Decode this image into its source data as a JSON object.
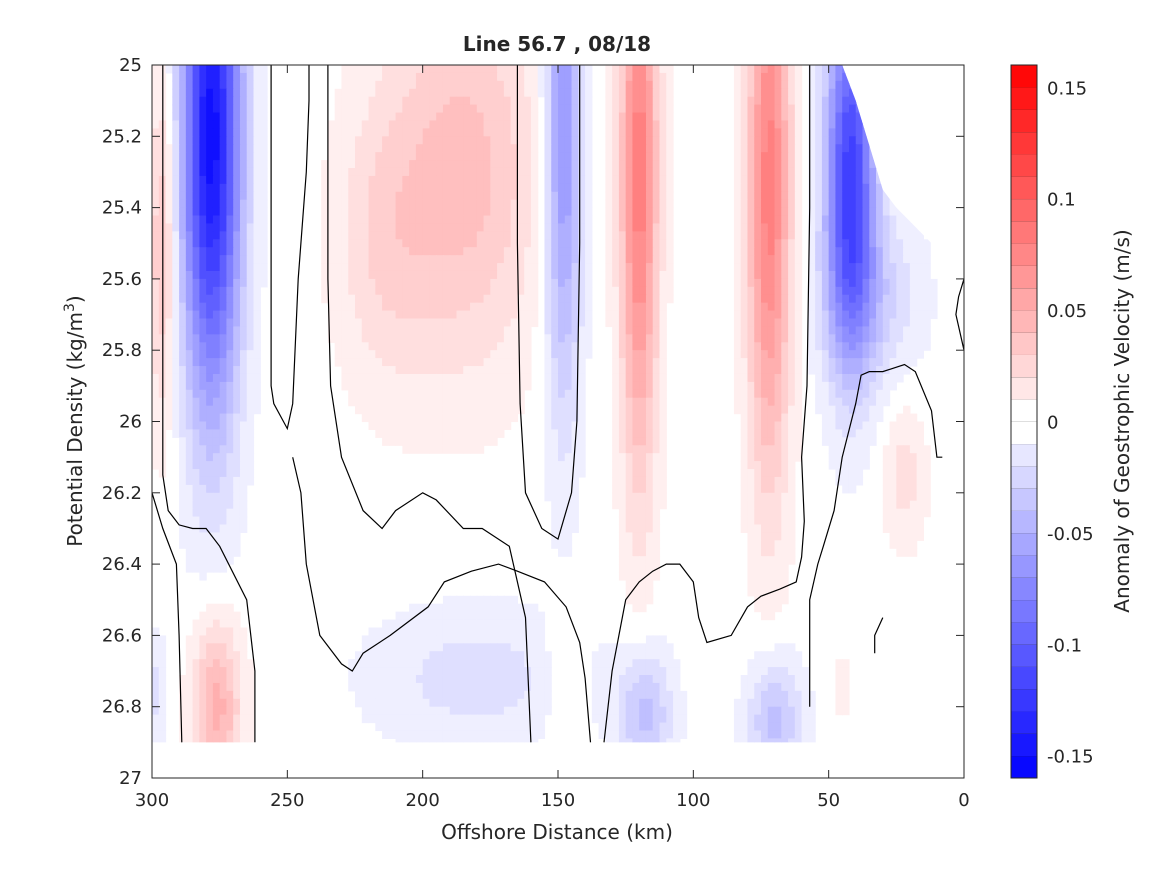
{
  "chart_data": {
    "type": "heatmap",
    "subtype": "filled-contour",
    "title": "Line 56.7 , 08/18",
    "xlabel": "Offshore Distance (km)",
    "ylabel_main": "Potential Density (kg/m",
    "ylabel_sup": "3",
    "ylabel_end": ")",
    "xlim": [
      300,
      0
    ],
    "ylim": [
      27,
      25
    ],
    "xticks": [
      300,
      250,
      200,
      150,
      100,
      50,
      0
    ],
    "xtick_labels": [
      "300",
      "250",
      "200",
      "150",
      "100",
      "50",
      "0"
    ],
    "yticks": [
      25,
      25.2,
      25.4,
      25.6,
      25.8,
      26,
      26.2,
      26.4,
      26.6,
      26.8,
      27
    ],
    "ytick_labels": [
      "25",
      "25.2",
      "25.4",
      "25.6",
      "25.8",
      "26",
      "26.2",
      "26.4",
      "26.6",
      "26.8",
      "27"
    ],
    "colorbar": {
      "label": "Anomaly of Geostrophic Velocity (m/s)",
      "range": [
        -0.16,
        0.16
      ],
      "levels_step": 0.01,
      "ticks": [
        0.15,
        0.1,
        0.05,
        0,
        -0.05,
        -0.1,
        -0.15
      ],
      "tick_labels": [
        "0.15",
        "0.1",
        "0.05",
        "0",
        "-0.05",
        "-0.1",
        "-0.15"
      ],
      "positive_color": "#ff0000",
      "negative_color": "#0000ff"
    },
    "data_coverage": {
      "y_max": 26.9,
      "top_boundary": [
        [
          300,
          25
        ],
        [
          45,
          25
        ],
        [
          40,
          25.1
        ],
        [
          30,
          25.35
        ],
        [
          25,
          25.4
        ],
        [
          12,
          25.5
        ],
        [
          5,
          25.5
        ],
        [
          3,
          25.6
        ],
        [
          0,
          25.6
        ]
      ]
    },
    "features": [
      {
        "x": 296,
        "y": 25.5,
        "value": 0.04,
        "wx": 5,
        "wy": 0.5
      },
      {
        "x": 278,
        "y": 25.2,
        "value": -0.15,
        "wx": 11,
        "wy": 0.75
      },
      {
        "x": 276,
        "y": 26.8,
        "value": 0.05,
        "wx": 9,
        "wy": 0.25
      },
      {
        "x": 298,
        "y": 26.75,
        "value": -0.02,
        "wx": 3,
        "wy": 0.15
      },
      {
        "x": 185,
        "y": 25.3,
        "value": 0.04,
        "wx": 28,
        "wy": 0.55
      },
      {
        "x": 215,
        "y": 25.5,
        "value": 0.02,
        "wx": 18,
        "wy": 0.4
      },
      {
        "x": 148,
        "y": 25.2,
        "value": -0.07,
        "wx": 7,
        "wy": 0.75
      },
      {
        "x": 120,
        "y": 25.3,
        "value": 0.08,
        "wx": 7,
        "wy": 0.85
      },
      {
        "x": 72,
        "y": 25.35,
        "value": 0.08,
        "wx": 8,
        "wy": 0.8
      },
      {
        "x": 42,
        "y": 25.3,
        "value": -0.12,
        "wx": 9,
        "wy": 0.5
      },
      {
        "x": 35,
        "y": 25.65,
        "value": -0.03,
        "wx": 18,
        "wy": 0.25
      },
      {
        "x": 22,
        "y": 26.15,
        "value": 0.02,
        "wx": 8,
        "wy": 0.2
      },
      {
        "x": 180,
        "y": 26.72,
        "value": -0.02,
        "wx": 40,
        "wy": 0.2
      },
      {
        "x": 118,
        "y": 26.82,
        "value": -0.04,
        "wx": 10,
        "wy": 0.18
      },
      {
        "x": 70,
        "y": 26.84,
        "value": -0.04,
        "wx": 10,
        "wy": 0.18
      },
      {
        "x": 148,
        "y": 26.7,
        "value": 0.015,
        "wx": 7,
        "wy": 0.2
      },
      {
        "x": 45,
        "y": 26.75,
        "value": 0.015,
        "wx": 3,
        "wy": 0.08
      }
    ],
    "zero_contours": [
      [
        [
          296,
          25
        ],
        [
          296,
          26.15
        ],
        [
          294,
          26.25
        ],
        [
          290,
          26.29
        ],
        [
          285,
          26.3
        ],
        [
          280,
          26.3
        ],
        [
          275,
          26.35
        ],
        [
          265,
          26.5
        ],
        [
          262,
          26.7
        ],
        [
          262,
          26.9
        ]
      ],
      [
        [
          300,
          26.2
        ],
        [
          296,
          26.3
        ],
        [
          291,
          26.4
        ],
        [
          290,
          26.6
        ],
        [
          289,
          26.9
        ]
      ],
      [
        [
          256,
          25
        ],
        [
          256,
          25.9
        ],
        [
          255,
          25.95
        ],
        [
          250,
          26.02
        ],
        [
          248,
          25.95
        ],
        [
          246,
          25.6
        ],
        [
          243,
          25.3
        ],
        [
          242,
          25.1
        ],
        [
          242,
          25
        ]
      ],
      [
        [
          235,
          25
        ],
        [
          235,
          25.6
        ],
        [
          234,
          25.9
        ],
        [
          230,
          26.1
        ],
        [
          222,
          26.25
        ],
        [
          215,
          26.3
        ],
        [
          210,
          26.25
        ],
        [
          200,
          26.2
        ],
        [
          195,
          26.22
        ],
        [
          185,
          26.3
        ],
        [
          178,
          26.3
        ],
        [
          168,
          26.35
        ],
        [
          162,
          26.55
        ],
        [
          160,
          26.9
        ]
      ],
      [
        [
          165,
          25
        ],
        [
          165,
          25.5
        ],
        [
          164,
          25.95
        ],
        [
          162,
          26.2
        ],
        [
          156,
          26.3
        ],
        [
          150,
          26.33
        ],
        [
          145,
          26.2
        ],
        [
          143,
          26.0
        ],
        [
          142,
          25.5
        ],
        [
          142,
          25
        ]
      ],
      [
        [
          138,
          26.9
        ],
        [
          140,
          26.72
        ],
        [
          142,
          26.62
        ],
        [
          147,
          26.52
        ],
        [
          155,
          26.45
        ],
        [
          165,
          26.42
        ],
        [
          172,
          26.4
        ],
        [
          182,
          26.42
        ],
        [
          192,
          26.45
        ],
        [
          198,
          26.52
        ],
        [
          212,
          26.6
        ],
        [
          222,
          26.65
        ],
        [
          226,
          26.7
        ],
        [
          230,
          26.68
        ],
        [
          238,
          26.6
        ],
        [
          243,
          26.4
        ],
        [
          245,
          26.2
        ],
        [
          248,
          26.1
        ]
      ],
      [
        [
          57,
          25
        ],
        [
          57,
          25.4
        ],
        [
          58,
          25.9
        ],
        [
          60,
          26.1
        ],
        [
          59,
          26.28
        ],
        [
          60,
          26.38
        ],
        [
          62,
          26.45
        ],
        [
          68,
          26.47
        ],
        [
          75,
          26.49
        ],
        [
          80,
          26.52
        ],
        [
          86,
          26.6
        ],
        [
          95,
          26.62
        ],
        [
          98,
          26.55
        ],
        [
          100,
          26.45
        ],
        [
          105,
          26.4
        ],
        [
          110,
          26.4
        ],
        [
          115,
          26.42
        ],
        [
          120,
          26.45
        ],
        [
          125,
          26.5
        ],
        [
          130,
          26.7
        ],
        [
          133,
          26.9
        ]
      ],
      [
        [
          57,
          26.8
        ],
        [
          57,
          26.5
        ],
        [
          54,
          26.4
        ],
        [
          52,
          26.35
        ],
        [
          48,
          26.25
        ],
        [
          45,
          26.1
        ],
        [
          40,
          25.95
        ],
        [
          38,
          25.87
        ],
        [
          35,
          25.86
        ],
        [
          30,
          25.86
        ],
        [
          22,
          25.84
        ],
        [
          18,
          25.86
        ],
        [
          12,
          25.97
        ],
        [
          10,
          26.1
        ],
        [
          8,
          26.1
        ]
      ],
      [
        [
          0,
          25.6
        ],
        [
          2,
          25.65
        ],
        [
          3,
          25.7
        ],
        [
          0,
          25.8
        ]
      ],
      [
        [
          33,
          26.65
        ],
        [
          33,
          26.6
        ],
        [
          30,
          26.55
        ]
      ]
    ]
  }
}
